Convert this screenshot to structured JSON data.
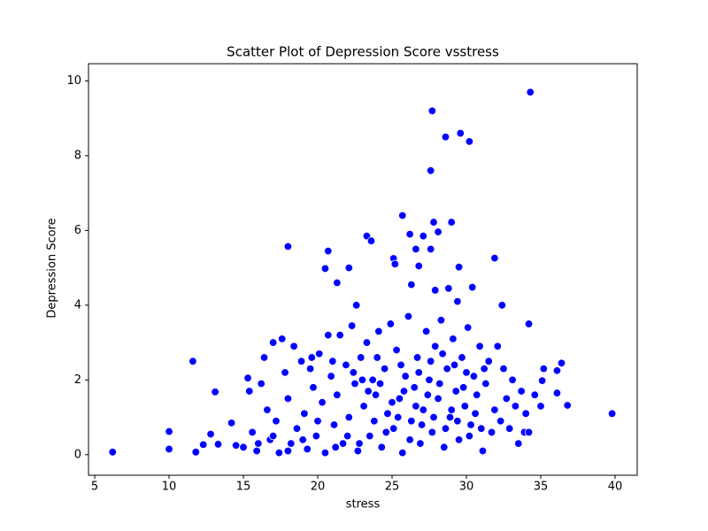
{
  "chart_data": {
    "type": "scatter",
    "title": "Scatter Plot of Depression Score vsstress",
    "x_label": "stress",
    "y_label": "Depression Score",
    "color": "#0000ff",
    "x": [
      6.2,
      10.0,
      10.0,
      11.6,
      11.8,
      12.3,
      12.8,
      13.1,
      13.3,
      39.8,
      36.8,
      36.4,
      36.1,
      36.1,
      35.2,
      35.1,
      34.3,
      27.7,
      28.6,
      29.6,
      30.2,
      27.6,
      25.7,
      27.8,
      29.0,
      26.2,
      27.1,
      28.1,
      18.0,
      20.7,
      20.5,
      22.1,
      21.3,
      23.3,
      23.6,
      26.6,
      27.6,
      25.1,
      25.2,
      26.8,
      29.5,
      31.9,
      30.4,
      26.3,
      27.9,
      28.8,
      29.4,
      22.6,
      32.4,
      34.2,
      14.2,
      14.5,
      15.0,
      15.3,
      15.4,
      15.6,
      15.9,
      16.2,
      16.4,
      16.6,
      16.8,
      17.0,
      17.2,
      17.4,
      17.6,
      17.8,
      18.0,
      18.2,
      18.4,
      18.6,
      18.9,
      19.1,
      19.3,
      19.5,
      19.7,
      19.9,
      20.1,
      20.3,
      20.5,
      20.7,
      20.9,
      21.1,
      21.3,
      21.5,
      21.7,
      21.9,
      22.1,
      22.3,
      22.5,
      22.7,
      22.9,
      23.1,
      23.3,
      23.5,
      23.7,
      23.9,
      24.1,
      24.3,
      24.5,
      24.7,
      24.9,
      25.1,
      25.3,
      25.5,
      25.7,
      25.9,
      26.1,
      26.3,
      26.5,
      26.7,
      26.9,
      27.1,
      27.3,
      27.5,
      27.7,
      27.9,
      28.1,
      28.3,
      28.5,
      28.7,
      28.9,
      29.1,
      29.3,
      29.5,
      29.7,
      29.9,
      30.1,
      30.3,
      30.5,
      30.7,
      30.9,
      31.1,
      31.3,
      31.5,
      31.7,
      31.9,
      32.1,
      32.3,
      32.5,
      32.7,
      32.9,
      33.1,
      33.3,
      33.5,
      33.7,
      33.9,
      34.0,
      34.2,
      34.6,
      35.0,
      23.4,
      24.2,
      25.0,
      25.8,
      26.6,
      27.4,
      28.2,
      29.0,
      29.8,
      30.6,
      23.8,
      24.6,
      25.4,
      26.2,
      27.0,
      27.8,
      28.6,
      29.4,
      30.2,
      31.0,
      22.0,
      22.8,
      21.2,
      20.0,
      19.0,
      18.0,
      17.0,
      16.0,
      24.0,
      25.6,
      26.8,
      27.6,
      28.4,
      29.2,
      30.0,
      31.2,
      22.4,
      21.0,
      19.6,
      23.0
    ],
    "y": [
      0.07,
      0.62,
      0.15,
      2.5,
      0.07,
      0.27,
      0.55,
      1.68,
      0.28,
      1.1,
      1.32,
      2.45,
      2.25,
      1.65,
      2.3,
      1.98,
      9.7,
      9.2,
      8.5,
      8.6,
      8.38,
      7.6,
      6.4,
      6.22,
      6.22,
      5.9,
      5.85,
      5.96,
      5.57,
      5.45,
      4.98,
      5.0,
      4.6,
      5.85,
      5.72,
      5.5,
      5.5,
      5.25,
      5.1,
      5.05,
      5.02,
      5.26,
      4.48,
      4.55,
      4.4,
      4.45,
      4.1,
      4.0,
      4.0,
      3.5,
      0.85,
      0.25,
      0.2,
      2.05,
      1.7,
      0.6,
      0.1,
      1.9,
      2.6,
      1.2,
      0.4,
      3.0,
      0.9,
      0.05,
      3.1,
      2.2,
      1.5,
      0.3,
      2.9,
      0.7,
      2.5,
      1.1,
      0.15,
      2.3,
      1.8,
      0.5,
      2.7,
      1.4,
      0.05,
      3.2,
      2.1,
      0.8,
      1.6,
      3.2,
      0.3,
      2.4,
      1.0,
      3.45,
      1.9,
      0.1,
      2.6,
      1.3,
      3.0,
      0.5,
      2.0,
      1.6,
      3.3,
      0.2,
      2.3,
      1.1,
      3.5,
      0.7,
      2.8,
      1.5,
      0.05,
      2.1,
      3.7,
      0.9,
      1.8,
      2.6,
      0.3,
      1.2,
      3.3,
      2.0,
      0.6,
      2.9,
      1.5,
      3.6,
      0.2,
      2.3,
      1.0,
      3.1,
      1.7,
      0.4,
      2.6,
      1.3,
      3.4,
      0.8,
      2.1,
      1.6,
      2.9,
      0.1,
      1.9,
      2.5,
      0.6,
      1.2,
      2.9,
      0.9,
      2.3,
      1.5,
      0.7,
      2.0,
      1.3,
      0.3,
      1.7,
      0.6,
      1.1,
      0.6,
      1.6,
      1.3,
      1.7,
      1.9,
      1.4,
      1.7,
      1.3,
      1.6,
      1.9,
      1.2,
      1.8,
      1.1,
      0.9,
      0.6,
      1.0,
      0.4,
      0.8,
      1.0,
      0.7,
      0.9,
      0.5,
      0.7,
      0.5,
      0.3,
      0.2,
      0.9,
      0.4,
      0.1,
      0.5,
      0.3,
      2.6,
      2.4,
      2.2,
      2.5,
      2.7,
      2.4,
      2.2,
      2.3,
      2.2,
      2.5,
      2.6,
      2.0
    ],
    "xlim": [
      4.58,
      41.49
    ],
    "ylim": [
      -0.55,
      10.46
    ],
    "xticks": [
      5,
      10,
      15,
      20,
      25,
      30,
      35,
      40
    ],
    "yticks": [
      0,
      2,
      4,
      6,
      8,
      10
    ]
  }
}
